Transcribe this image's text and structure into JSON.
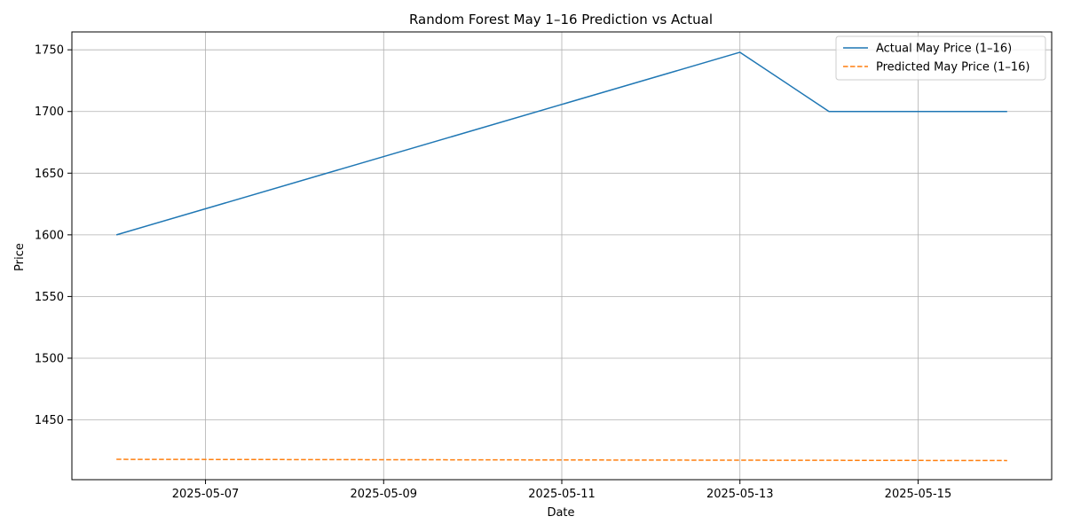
{
  "chart_data": {
    "type": "line",
    "title": "Random Forest May 1–16 Prediction vs Actual",
    "xlabel": "Date",
    "ylabel": "Price",
    "x": [
      "2025-05-06",
      "2025-05-07",
      "2025-05-08",
      "2025-05-09",
      "2025-05-10",
      "2025-05-11",
      "2025-05-12",
      "2025-05-13",
      "2025-05-14",
      "2025-05-15",
      "2025-05-16"
    ],
    "xlim": [
      "2025-05-05T12:00",
      "2025-05-16T12:00"
    ],
    "xticks": [
      "2025-05-07",
      "2025-05-09",
      "2025-05-11",
      "2025-05-13",
      "2025-05-15"
    ],
    "ylim": [
      1401.5,
      1764.5
    ],
    "yticks": [
      1450,
      1500,
      1550,
      1600,
      1650,
      1700,
      1750
    ],
    "grid": true,
    "legend_position": "top-right",
    "series": [
      {
        "name": "Actual May Price (1–16)",
        "color": "#1f77b4",
        "style": "solid",
        "points": [
          {
            "x": "2025-05-06",
            "y": 1600
          },
          {
            "x": "2025-05-13",
            "y": 1748
          },
          {
            "x": "2025-05-14",
            "y": 1700
          },
          {
            "x": "2025-05-16",
            "y": 1700
          }
        ]
      },
      {
        "name": "Predicted May Price (1–16)",
        "color": "#ff7f0e",
        "style": "dashed",
        "points": [
          {
            "x": "2025-05-06",
            "y": 1418
          },
          {
            "x": "2025-05-16",
            "y": 1417
          }
        ]
      }
    ]
  }
}
